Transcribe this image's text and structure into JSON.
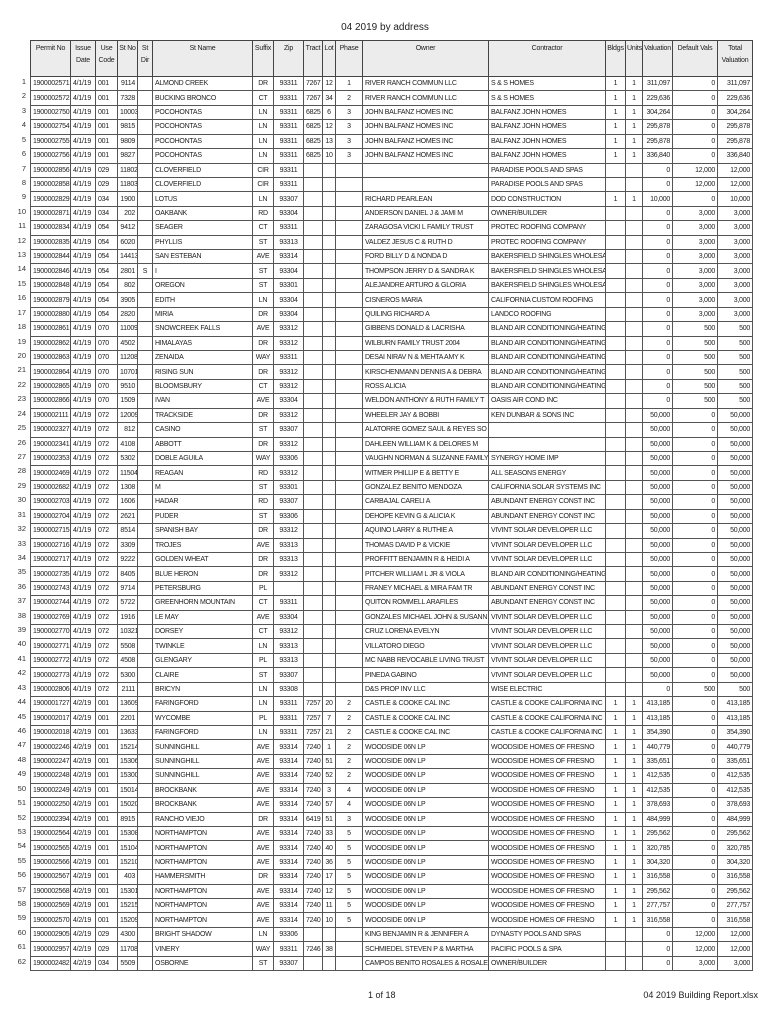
{
  "title": "04 2019 by address",
  "columns": [
    "Permit No",
    "Issue Date",
    "Use Code",
    "St No",
    "St Dir",
    "St Name",
    "Suffix",
    "Zip",
    "Tract",
    "Lot",
    "Phase",
    "Owner",
    "Contractor",
    "Bldgs",
    "Units",
    "Valuation",
    "Default Vals",
    "Total Valuation"
  ],
  "rows": [
    [
      "1",
      "1900002571",
      "4/1/19",
      "001",
      "9114",
      "",
      "ALMOND CREEK",
      "DR",
      "93311",
      "7267",
      "12",
      "1",
      "RIVER RANCH COMMUN LLC",
      "S & S HOMES",
      "1",
      "1",
      "311,097",
      "0",
      "311,097"
    ],
    [
      "2",
      "1900002572",
      "4/1/19",
      "001",
      "7328",
      "",
      "BUCKING BRONCO",
      "CT",
      "93311",
      "7267",
      "34",
      "2",
      "RIVER RANCH COMMUN LLC",
      "S & S HOMES",
      "1",
      "1",
      "229,636",
      "0",
      "229,636"
    ],
    [
      "3",
      "1900002750",
      "4/1/19",
      "001",
      "10003",
      "",
      "POCOHONTAS",
      "LN",
      "93311",
      "6825",
      "6",
      "3",
      "JOHN BALFANZ HOMES INC",
      "BALFANZ JOHN HOMES",
      "1",
      "1",
      "304,264",
      "0",
      "304,264"
    ],
    [
      "4",
      "1900002754",
      "4/1/19",
      "001",
      "9815",
      "",
      "POCOHONTAS",
      "LN",
      "93311",
      "6825",
      "12",
      "3",
      "JOHN BALFANZ HOMES INC",
      "BALFANZ JOHN HOMES",
      "1",
      "1",
      "295,878",
      "0",
      "295,878"
    ],
    [
      "5",
      "1900002755",
      "4/1/19",
      "001",
      "9809",
      "",
      "POCOHONTAS",
      "LN",
      "93311",
      "6825",
      "13",
      "3",
      "JOHN BALFANZ HOMES INC",
      "BALFANZ JOHN HOMES",
      "1",
      "1",
      "295,878",
      "0",
      "295,878"
    ],
    [
      "6",
      "1900002756",
      "4/1/19",
      "001",
      "9827",
      "",
      "POCOHONTAS",
      "LN",
      "93311",
      "6825",
      "10",
      "3",
      "JOHN BALFANZ HOMES INC",
      "BALFANZ JOHN HOMES",
      "1",
      "1",
      "336,840",
      "0",
      "336,840"
    ],
    [
      "7",
      "1900002856",
      "4/1/19",
      "029",
      "11802",
      "",
      "CLOVERFIELD",
      "CIR",
      "93311",
      "",
      "",
      "",
      "",
      "PARADISE POOLS AND SPAS",
      "",
      "",
      "0",
      "12,000",
      "12,000"
    ],
    [
      "8",
      "1900002858",
      "4/1/19",
      "029",
      "11803",
      "",
      "CLOVERFIELD",
      "CIR",
      "93311",
      "",
      "",
      "",
      "",
      "PARADISE POOLS AND SPAS",
      "",
      "",
      "0",
      "12,000",
      "12,000"
    ],
    [
      "9",
      "1900002829",
      "4/1/19",
      "034",
      "1900",
      "",
      "LOTUS",
      "LN",
      "93307",
      "",
      "",
      "",
      "RICHARD PEARLEAN",
      "DOD CONSTRUCTION",
      "1",
      "1",
      "10,000",
      "0",
      "10,000"
    ],
    [
      "10",
      "1900002871",
      "4/1/19",
      "034",
      "202",
      "",
      "OAKBANK",
      "RD",
      "93304",
      "",
      "",
      "",
      "ANDERSON DANIEL J & JAMI M",
      "OWNER/BUILDER",
      "",
      "",
      "0",
      "3,000",
      "3,000"
    ],
    [
      "11",
      "1900002834",
      "4/1/19",
      "054",
      "9412",
      "",
      "SEAGER",
      "CT",
      "93311",
      "",
      "",
      "",
      "ZARAGOSA VICKI L FAMILY TRUST",
      "PROTEC ROOFING COMPANY",
      "",
      "",
      "0",
      "3,000",
      "3,000"
    ],
    [
      "12",
      "1900002835",
      "4/1/19",
      "054",
      "6020",
      "",
      "PHYLLIS",
      "ST",
      "93313",
      "",
      "",
      "",
      "VALDEZ JESUS C & RUTH D",
      "PROTEC ROOFING COMPANY",
      "",
      "",
      "0",
      "3,000",
      "3,000"
    ],
    [
      "13",
      "1900002844",
      "4/1/19",
      "054",
      "14413",
      "",
      "SAN ESTEBAN",
      "AVE",
      "93314",
      "",
      "",
      "",
      "FORD BILLY D & NONDA D",
      "BAKERSFIELD SHINGLES WHOLESALE",
      "",
      "",
      "0",
      "3,000",
      "3,000"
    ],
    [
      "14",
      "1900002846",
      "4/1/19",
      "054",
      "2801",
      "S",
      "I",
      "ST",
      "93304",
      "",
      "",
      "",
      "THOMPSON JERRY D & SANDRA K",
      "BAKERSFIELD SHINGLES WHOLESALE",
      "",
      "",
      "0",
      "3,000",
      "3,000"
    ],
    [
      "15",
      "1900002848",
      "4/1/19",
      "054",
      "802",
      "",
      "OREGON",
      "ST",
      "93301",
      "",
      "",
      "",
      "ALEJANDRE ARTURO & GLORIA",
      "BAKERSFIELD SHINGLES WHOLESALE",
      "",
      "",
      "0",
      "3,000",
      "3,000"
    ],
    [
      "16",
      "1900002879",
      "4/1/19",
      "054",
      "3905",
      "",
      "EDITH",
      "LN",
      "93304",
      "",
      "",
      "",
      "CISNEROS MARIA",
      "CALIFORNIA CUSTOM ROOFING",
      "",
      "",
      "0",
      "3,000",
      "3,000"
    ],
    [
      "17",
      "1900002880",
      "4/1/19",
      "054",
      "2820",
      "",
      "MIRIA",
      "DR",
      "93304",
      "",
      "",
      "",
      "QUILING RICHARD A",
      "LANDCO ROOFING",
      "",
      "",
      "0",
      "3,000",
      "3,000"
    ],
    [
      "18",
      "1900002861",
      "4/1/19",
      "070",
      "11009",
      "",
      "SNOWCREEK FALLS",
      "AVE",
      "93312",
      "",
      "",
      "",
      "GIBBENS DONALD & LACRISHA",
      "BLAND AIR CONDITIONING/HEATING",
      "",
      "",
      "0",
      "500",
      "500"
    ],
    [
      "19",
      "1900002862",
      "4/1/19",
      "070",
      "4502",
      "",
      "HIMALAYAS",
      "DR",
      "93312",
      "",
      "",
      "",
      "WILBURN FAMILY TRUST 2004",
      "BLAND AIR CONDITIONING/HEATING",
      "",
      "",
      "0",
      "500",
      "500"
    ],
    [
      "20",
      "1900002863",
      "4/1/19",
      "070",
      "11208",
      "",
      "ZENAIDA",
      "WAY",
      "93311",
      "",
      "",
      "",
      "DESAI NIRAV N & MEHTA AMY K",
      "BLAND AIR CONDITIONING/HEATING",
      "",
      "",
      "0",
      "500",
      "500"
    ],
    [
      "21",
      "1900002864",
      "4/1/19",
      "070",
      "10701",
      "",
      "RISING SUN",
      "DR",
      "93312",
      "",
      "",
      "",
      "KIRSCHENMANN DENNIS A & DEBRA",
      "BLAND AIR CONDITIONING/HEATING",
      "",
      "",
      "0",
      "500",
      "500"
    ],
    [
      "22",
      "1900002865",
      "4/1/19",
      "070",
      "9510",
      "",
      "BLOOMSBURY",
      "CT",
      "93312",
      "",
      "",
      "",
      "ROSS ALICIA",
      "BLAND AIR CONDITIONING/HEATING",
      "",
      "",
      "0",
      "500",
      "500"
    ],
    [
      "23",
      "1900002866",
      "4/1/19",
      "070",
      "1509",
      "",
      "IVAN",
      "AVE",
      "93304",
      "",
      "",
      "",
      "WELDON ANTHONY & RUTH FAMILY T",
      "OASIS AIR COND INC",
      "",
      "",
      "0",
      "500",
      "500"
    ],
    [
      "24",
      "1900002111",
      "4/1/19",
      "072",
      "12009",
      "",
      "TRACKSIDE",
      "DR",
      "93312",
      "",
      "",
      "",
      "WHEELER JAY & BOBBI",
      "KEN DUNBAR & SONS INC",
      "",
      "",
      "50,000",
      "0",
      "50,000"
    ],
    [
      "25",
      "1900002327",
      "4/1/19",
      "072",
      "812",
      "",
      "CASINO",
      "ST",
      "93307",
      "",
      "",
      "",
      "ALATORRE GOMEZ SAUL & REYES SO",
      "",
      "",
      "",
      "50,000",
      "0",
      "50,000"
    ],
    [
      "26",
      "1900002341",
      "4/1/19",
      "072",
      "4108",
      "",
      "ABBOTT",
      "DR",
      "93312",
      "",
      "",
      "",
      "DAHLEEN WILLIAM K & DELORES M",
      "",
      "",
      "",
      "50,000",
      "0",
      "50,000"
    ],
    [
      "27",
      "1900002353",
      "4/1/19",
      "072",
      "5302",
      "",
      "DOBLE AGUILA",
      "WAY",
      "93306",
      "",
      "",
      "",
      "VAUGHN NORMAN & SUZANNE FAMILY",
      "SYNERGY HOME IMP",
      "",
      "",
      "50,000",
      "0",
      "50,000"
    ],
    [
      "28",
      "1900002469",
      "4/1/19",
      "072",
      "11504",
      "",
      "REAGAN",
      "RD",
      "93312",
      "",
      "",
      "",
      "WITMER PHILLIP E & BETTY E",
      "ALL SEASONS ENERGY",
      "",
      "",
      "50,000",
      "0",
      "50,000"
    ],
    [
      "29",
      "1900002682",
      "4/1/19",
      "072",
      "1308",
      "",
      "M",
      "ST",
      "93301",
      "",
      "",
      "",
      "GONZALEZ BENITO MENDOZA",
      "CALIFORNIA SOLAR SYSTEMS INC",
      "",
      "",
      "50,000",
      "0",
      "50,000"
    ],
    [
      "30",
      "1900002703",
      "4/1/19",
      "072",
      "1606",
      "",
      "HADAR",
      "RD",
      "93307",
      "",
      "",
      "",
      "CARBAJAL CARELI A",
      "ABUNDANT ENERGY CONST INC",
      "",
      "",
      "50,000",
      "0",
      "50,000"
    ],
    [
      "31",
      "1900002704",
      "4/1/19",
      "072",
      "2621",
      "",
      "PUDER",
      "ST",
      "93306",
      "",
      "",
      "",
      "DEHOPE KEVIN G & ALICIA K",
      "ABUNDANT ENERGY CONST INC",
      "",
      "",
      "50,000",
      "0",
      "50,000"
    ],
    [
      "32",
      "1900002715",
      "4/1/19",
      "072",
      "8514",
      "",
      "SPANISH BAY",
      "DR",
      "93312",
      "",
      "",
      "",
      "AQUINO LARRY & RUTHIE A",
      "VIVINT SOLAR DEVELOPER LLC",
      "",
      "",
      "50,000",
      "0",
      "50,000"
    ],
    [
      "33",
      "1900002716",
      "4/1/19",
      "072",
      "3309",
      "",
      "TROJES",
      "AVE",
      "93313",
      "",
      "",
      "",
      "THOMAS DAVID P & VICKIE",
      "VIVINT SOLAR DEVELOPER LLC",
      "",
      "",
      "50,000",
      "0",
      "50,000"
    ],
    [
      "34",
      "1900002717",
      "4/1/19",
      "072",
      "9222",
      "",
      "GOLDEN WHEAT",
      "DR",
      "93313",
      "",
      "",
      "",
      "PROFFITT BENJAMIN R & HEIDI A",
      "VIVINT SOLAR DEVELOPER LLC",
      "",
      "",
      "50,000",
      "0",
      "50,000"
    ],
    [
      "35",
      "1900002735",
      "4/1/19",
      "072",
      "8405",
      "",
      "BLUE HERON",
      "DR",
      "93312",
      "",
      "",
      "",
      "PITCHER WILLIAM L JR & VIOLA",
      "BLAND AIR CONDITIONING/HEATING",
      "",
      "",
      "50,000",
      "0",
      "50,000"
    ],
    [
      "36",
      "1900002743",
      "4/1/19",
      "072",
      "9714",
      "",
      "PETERSBURG",
      "PL",
      "",
      "",
      "",
      "",
      "FRANEY MICHAEL & MIRA FAM TR",
      "ABUNDANT ENERGY CONST INC",
      "",
      "",
      "50,000",
      "0",
      "50,000"
    ],
    [
      "37",
      "1900002744",
      "4/1/19",
      "072",
      "5722",
      "",
      "GREENHORN MOUNTAIN",
      "CT",
      "93311",
      "",
      "",
      "",
      "QUITON ROMMELL ARAFILES",
      "ABUNDANT ENERGY CONST INC",
      "",
      "",
      "50,000",
      "0",
      "50,000"
    ],
    [
      "38",
      "1900002769",
      "4/1/19",
      "072",
      "1916",
      "",
      "LE MAY",
      "AVE",
      "93304",
      "",
      "",
      "",
      "GONZALES MICHAEL JOHN & SUSANN",
      "VIVINT SOLAR DEVELOPER LLC",
      "",
      "",
      "50,000",
      "0",
      "50,000"
    ],
    [
      "39",
      "1900002770",
      "4/1/19",
      "072",
      "10321",
      "",
      "DORSEY",
      "CT",
      "93312",
      "",
      "",
      "",
      "CRUZ LORENA EVELYN",
      "VIVINT SOLAR DEVELOPER LLC",
      "",
      "",
      "50,000",
      "0",
      "50,000"
    ],
    [
      "40",
      "1900002771",
      "4/1/19",
      "072",
      "5508",
      "",
      "TWINKLE",
      "LN",
      "93313",
      "",
      "",
      "",
      "VILLATORO DIEGO",
      "VIVINT SOLAR DEVELOPER LLC",
      "",
      "",
      "50,000",
      "0",
      "50,000"
    ],
    [
      "41",
      "1900002772",
      "4/1/19",
      "072",
      "4508",
      "",
      "GLENGARY",
      "PL",
      "93313",
      "",
      "",
      "",
      "MC NABB REVOCABLE LIVING TRUST",
      "VIVINT SOLAR DEVELOPER LLC",
      "",
      "",
      "50,000",
      "0",
      "50,000"
    ],
    [
      "42",
      "1900002773",
      "4/1/19",
      "072",
      "5300",
      "",
      "CLAIRE",
      "ST",
      "93307",
      "",
      "",
      "",
      "PINEDA GABINO",
      "VIVINT SOLAR DEVELOPER LLC",
      "",
      "",
      "50,000",
      "0",
      "50,000"
    ],
    [
      "43",
      "1900002806",
      "4/1/19",
      "072",
      "2111",
      "",
      "BRICYN",
      "LN",
      "93308",
      "",
      "",
      "",
      "D&S PROP INV LLC",
      "WISE ELECTRIC",
      "",
      "",
      "0",
      "500",
      "500"
    ],
    [
      "44",
      "1900001727",
      "4/2/19",
      "001",
      "13609",
      "",
      "FARINGFORD",
      "LN",
      "93311",
      "7257",
      "20",
      "2",
      "CASTLE & COOKE CAL INC",
      "CASTLE & COOKE CALIFORNIA INC",
      "1",
      "1",
      "413,185",
      "0",
      "413,185"
    ],
    [
      "45",
      "1900002017",
      "4/2/19",
      "001",
      "2201",
      "",
      "WYCOMBE",
      "PL",
      "93311",
      "7257",
      "7",
      "2",
      "CASTLE & COOKE CAL INC",
      "CASTLE & COOKE CALIFORNIA INC",
      "1",
      "1",
      "413,185",
      "0",
      "413,185"
    ],
    [
      "46",
      "1900002018",
      "4/2/19",
      "001",
      "13633",
      "",
      "FARINGFORD",
      "LN",
      "93311",
      "7257",
      "21",
      "2",
      "CASTLE & COOKE CAL INC",
      "CASTLE & COOKE CALIFORNIA INC",
      "1",
      "1",
      "354,390",
      "0",
      "354,390"
    ],
    [
      "47",
      "1900002246",
      "4/2/19",
      "001",
      "15214",
      "",
      "SUNNINGHILL",
      "AVE",
      "93314",
      "7240",
      "1",
      "2",
      "WOODSIDE 06N LP",
      "WOODSIDE HOMES OF FRESNO",
      "1",
      "1",
      "440,779",
      "0",
      "440,779"
    ],
    [
      "48",
      "1900002247",
      "4/2/19",
      "001",
      "15306",
      "",
      "SUNNINGHILL",
      "AVE",
      "93314",
      "7240",
      "51",
      "2",
      "WOODSIDE 06N LP",
      "WOODSIDE HOMES OF FRESNO",
      "1",
      "1",
      "335,651",
      "0",
      "335,651"
    ],
    [
      "49",
      "1900002248",
      "4/2/19",
      "001",
      "15300",
      "",
      "SUNNINGHILL",
      "AVE",
      "93314",
      "7240",
      "52",
      "2",
      "WOODSIDE 06N LP",
      "WOODSIDE HOMES OF FRESNO",
      "1",
      "1",
      "412,535",
      "0",
      "412,535"
    ],
    [
      "50",
      "1900002249",
      "4/2/19",
      "001",
      "15014",
      "",
      "BROCKBANK",
      "AVE",
      "93314",
      "7240",
      "3",
      "4",
      "WOODSIDE 06N LP",
      "WOODSIDE HOMES OF FRESNO",
      "1",
      "1",
      "412,535",
      "0",
      "412,535"
    ],
    [
      "51",
      "1900002250",
      "4/2/19",
      "001",
      "15020",
      "",
      "BROCKBANK",
      "AVE",
      "93314",
      "7240",
      "57",
      "4",
      "WOODSIDE 06N LP",
      "WOODSIDE HOMES OF FRESNO",
      "1",
      "1",
      "378,693",
      "0",
      "378,693"
    ],
    [
      "52",
      "1900002394",
      "4/2/19",
      "001",
      "8915",
      "",
      "RANCHO VIEJO",
      "DR",
      "93314",
      "6419",
      "51",
      "3",
      "WOODSIDE 06N LP",
      "WOODSIDE HOMES OF FRESNO",
      "1",
      "1",
      "484,999",
      "0",
      "484,999"
    ],
    [
      "53",
      "1900002564",
      "4/2/19",
      "001",
      "15308",
      "",
      "NORTHAMPTON",
      "AVE",
      "93314",
      "7240",
      "33",
      "5",
      "WOODSIDE 06N LP",
      "WOODSIDE HOMES OF FRESNO",
      "1",
      "1",
      "295,562",
      "0",
      "295,562"
    ],
    [
      "54",
      "1900002565",
      "4/2/19",
      "001",
      "15104",
      "",
      "NORTHAMPTON",
      "AVE",
      "93314",
      "7240",
      "40",
      "5",
      "WOODSIDE 06N LP",
      "WOODSIDE HOMES OF FRESNO",
      "1",
      "1",
      "320,785",
      "0",
      "320,785"
    ],
    [
      "55",
      "1900002566",
      "4/2/19",
      "001",
      "15210",
      "",
      "NORTHAMPTON",
      "AVE",
      "93314",
      "7240",
      "36",
      "5",
      "WOODSIDE 06N LP",
      "WOODSIDE HOMES OF FRESNO",
      "1",
      "1",
      "304,320",
      "0",
      "304,320"
    ],
    [
      "56",
      "1900002567",
      "4/2/19",
      "001",
      "403",
      "",
      "HAMMERSMITH",
      "DR",
      "93314",
      "7240",
      "17",
      "5",
      "WOODSIDE 06N LP",
      "WOODSIDE HOMES OF FRESNO",
      "1",
      "1",
      "316,558",
      "0",
      "316,558"
    ],
    [
      "57",
      "1900002568",
      "4/2/19",
      "001",
      "15301",
      "",
      "NORTHAMPTON",
      "AVE",
      "93314",
      "7240",
      "12",
      "5",
      "WOODSIDE 06N LP",
      "WOODSIDE HOMES OF FRESNO",
      "1",
      "1",
      "295,562",
      "0",
      "295,562"
    ],
    [
      "58",
      "1900002569",
      "4/2/19",
      "001",
      "15215",
      "",
      "NORTHAMPTON",
      "AVE",
      "93314",
      "7240",
      "11",
      "5",
      "WOODSIDE 06N LP",
      "WOODSIDE HOMES OF FRESNO",
      "1",
      "1",
      "277,757",
      "0",
      "277,757"
    ],
    [
      "59",
      "1900002570",
      "4/2/19",
      "001",
      "15209",
      "",
      "NORTHAMPTON",
      "AVE",
      "93314",
      "7240",
      "10",
      "5",
      "WOODSIDE 06N LP",
      "WOODSIDE HOMES OF FRESNO",
      "1",
      "1",
      "316,558",
      "0",
      "316,558"
    ],
    [
      "60",
      "1900002905",
      "4/2/19",
      "029",
      "4300",
      "",
      "BRIGHT SHADOW",
      "LN",
      "93306",
      "",
      "",
      "",
      "KING BENJAMIN R & JENNIFER A",
      "DYNASTY POOLS AND SPAS",
      "",
      "",
      "0",
      "12,000",
      "12,000"
    ],
    [
      "61",
      "1900002957",
      "4/2/19",
      "029",
      "11708",
      "",
      "VINERY",
      "WAY",
      "93311",
      "7246",
      "38",
      "",
      "SCHMIEDEL STEVEN P & MARTHA",
      "PACIFIC POOLS & SPA",
      "",
      "",
      "0",
      "12,000",
      "12,000"
    ],
    [
      "62",
      "1900002482",
      "4/2/19",
      "034",
      "5509",
      "",
      "OSBORNE",
      "ST",
      "93307",
      "",
      "",
      "",
      "CAMPOS BENITO ROSALES & ROSALE",
      "OWNER/BUILDER",
      "",
      "",
      "0",
      "3,000",
      "3,000"
    ]
  ],
  "footer": {
    "page": "1 of 18",
    "filename": "04 2019 Building Report.xlsx"
  }
}
